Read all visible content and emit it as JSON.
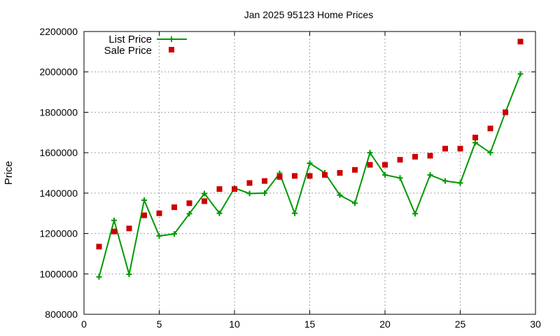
{
  "chart_data": {
    "type": "line",
    "title": "Jan 2025 95123 Home Prices",
    "xlabel": "",
    "ylabel": "Price",
    "xlim": [
      0,
      30
    ],
    "ylim": [
      800000,
      2200000
    ],
    "xticks": [
      0,
      5,
      10,
      15,
      20,
      25,
      30
    ],
    "yticks": [
      800000,
      1000000,
      1200000,
      1400000,
      1600000,
      1800000,
      2000000,
      2200000
    ],
    "grid": true,
    "legend_position": "top-left",
    "series": [
      {
        "name": "List Price",
        "style": "line+cross",
        "color": "#009900",
        "x": [
          1,
          2,
          3,
          4,
          5,
          6,
          7,
          8,
          9,
          10,
          11,
          12,
          13,
          14,
          15,
          16,
          17,
          18,
          19,
          20,
          21,
          22,
          23,
          24,
          25,
          26,
          27,
          28,
          29
        ],
        "y": [
          985000,
          1265000,
          998000,
          1365000,
          1188000,
          1198000,
          1298000,
          1398000,
          1300000,
          1425000,
          1398000,
          1400000,
          1498000,
          1300000,
          1548000,
          1500000,
          1390000,
          1350000,
          1600000,
          1490000,
          1475000,
          1298000,
          1490000,
          1460000,
          1450000,
          1650000,
          1600000,
          1800000,
          1990000
        ]
      },
      {
        "name": "Sale Price",
        "style": "square",
        "color": "#cc0000",
        "x": [
          1,
          2,
          3,
          4,
          5,
          6,
          7,
          8,
          9,
          10,
          11,
          12,
          13,
          14,
          15,
          16,
          17,
          18,
          19,
          20,
          21,
          22,
          23,
          24,
          25,
          26,
          27,
          28,
          29
        ],
        "y": [
          1135000,
          1210000,
          1225000,
          1290000,
          1300000,
          1330000,
          1350000,
          1360000,
          1420000,
          1420000,
          1450000,
          1460000,
          1480000,
          1485000,
          1485000,
          1490000,
          1500000,
          1515000,
          1540000,
          1540000,
          1565000,
          1580000,
          1585000,
          1620000,
          1620000,
          1675000,
          1720000,
          1800000,
          2150000
        ]
      }
    ]
  }
}
